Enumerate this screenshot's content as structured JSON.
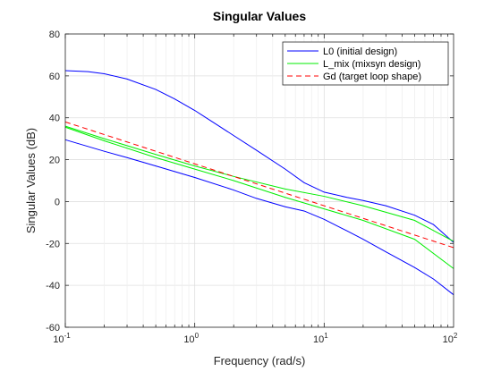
{
  "chart_data": {
    "type": "line",
    "title": "Singular Values",
    "xlabel": "Frequency (rad/s)",
    "ylabel": "Singular Values (dB)",
    "xscale": "log",
    "xlim": [
      0.1,
      100
    ],
    "ylim": [
      -60,
      80
    ],
    "xticks": [
      {
        "value": 0.1,
        "base": "10",
        "exp": "-1"
      },
      {
        "value": 1,
        "base": "10",
        "exp": "0"
      },
      {
        "value": 10,
        "base": "10",
        "exp": "1"
      },
      {
        "value": 100,
        "base": "10",
        "exp": "2"
      }
    ],
    "yticks": [
      "-60",
      "-40",
      "-20",
      "0",
      "20",
      "40",
      "60",
      "80"
    ],
    "grid": true,
    "legend_position": "top-right",
    "series": [
      {
        "name": "L0 (initial design)",
        "legend": true,
        "color": "#0000ff",
        "dash": "solid",
        "x": [
          0.1,
          0.15,
          0.2,
          0.3,
          0.5,
          0.7,
          1.0,
          1.5,
          2.0,
          3.0,
          5.0,
          7.0,
          10,
          15,
          20,
          30,
          50,
          70,
          100
        ],
        "y": [
          62.5,
          62.0,
          61.0,
          58.5,
          53.5,
          49.0,
          43.5,
          36.5,
          31.5,
          24.5,
          15.5,
          9.0,
          4.5,
          2.0,
          0.5,
          -2.0,
          -6.5,
          -11.0,
          -19.5
        ]
      },
      {
        "name": "L0 (initial design)",
        "legend": false,
        "color": "#0000ff",
        "dash": "solid",
        "x": [
          0.1,
          0.2,
          0.3,
          0.5,
          1.0,
          2.0,
          3.0,
          5.0,
          7.0,
          10,
          15,
          20,
          30,
          50,
          70,
          100
        ],
        "y": [
          29.5,
          24.0,
          21.0,
          17.0,
          11.5,
          5.5,
          1.5,
          -2.5,
          -4.5,
          -8.5,
          -14.0,
          -18.0,
          -24.0,
          -31.5,
          -37.0,
          -44.5
        ]
      },
      {
        "name": "L_mix  (mixsyn  design)",
        "legend": true,
        "color": "#00ee00",
        "dash": "solid",
        "x": [
          0.1,
          0.2,
          0.5,
          1.0,
          2.0,
          5.0,
          10,
          20,
          50,
          100
        ],
        "y": [
          36.0,
          30.0,
          22.5,
          17.0,
          12.0,
          6.0,
          2.5,
          -2.0,
          -9.0,
          -19.0
        ]
      },
      {
        "name": "L_mix  (mixsyn  design)",
        "legend": false,
        "color": "#00ee00",
        "dash": "solid",
        "x": [
          0.1,
          0.2,
          0.5,
          1.0,
          2.0,
          5.0,
          10,
          20,
          50,
          100
        ],
        "y": [
          35.5,
          29.0,
          21.0,
          15.5,
          10.0,
          2.0,
          -3.5,
          -9.0,
          -18.0,
          -32.0
        ]
      },
      {
        "name": "Gd (target loop shape)",
        "legend": true,
        "color": "#ff0000",
        "dash": "dashed",
        "x": [
          0.1,
          100
        ],
        "y": [
          38.0,
          -22.0
        ]
      }
    ]
  }
}
